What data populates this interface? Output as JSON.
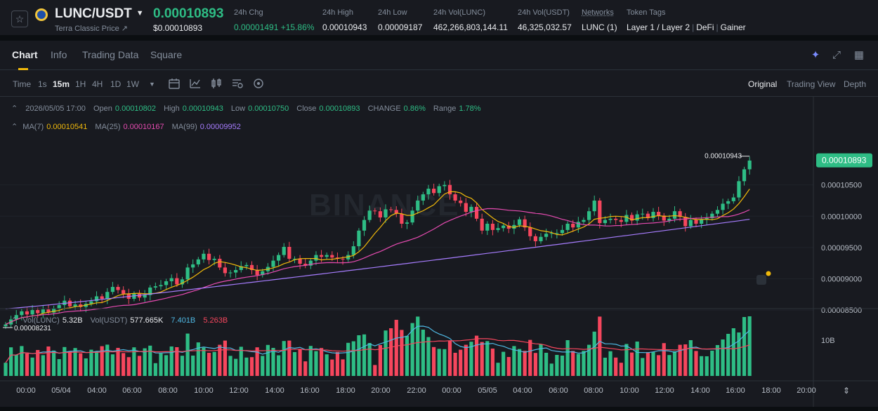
{
  "header": {
    "pair": "LUNC/USDT",
    "subname": "Terra Classic Price ↗",
    "price": "0.00010893",
    "price_usd": "$0.00010893",
    "stats": [
      {
        "label": "24h Chg",
        "value": "0.00001491 +15.86%",
        "green": true
      },
      {
        "label": "24h High",
        "value": "0.00010943"
      },
      {
        "label": "24h Low",
        "value": "0.00009187"
      },
      {
        "label": "24h Vol(LUNC)",
        "value": "462,266,803,144.11"
      },
      {
        "label": "24h Vol(USDT)",
        "value": "46,325,032.57"
      },
      {
        "label": "Networks",
        "value": "LUNC (1)"
      }
    ],
    "token_tags_label": "Token Tags",
    "token_tags": [
      "Layer 1 / Layer 2",
      "DeFi",
      "Gainer"
    ]
  },
  "tabs": [
    "Chart",
    "Info",
    "Trading Data",
    "Square"
  ],
  "timeframes": [
    "Time",
    "1s",
    "15m",
    "1H",
    "4H",
    "1D",
    "1W"
  ],
  "active_timeframe": "15m",
  "views": [
    "Original",
    "Trading View",
    "Depth"
  ],
  "ohlc": {
    "date": "2026/05/05 17:00",
    "open_label": "Open",
    "open": "0.00010802",
    "high_label": "High",
    "high": "0.00010943",
    "low_label": "Low",
    "low": "0.00010750",
    "close_label": "Close",
    "close": "0.00010893",
    "change_label": "CHANGE",
    "change": "0.86%",
    "range_label": "Range",
    "range": "1.78%"
  },
  "ma": [
    {
      "label": "MA(7)",
      "value": "0.00010541",
      "color": "#f0b90b"
    },
    {
      "label": "MA(25)",
      "value": "0.00010167",
      "color": "#e64bb1"
    },
    {
      "label": "MA(99)",
      "value": "0.00009952",
      "color": "#a77dff"
    }
  ],
  "volume": {
    "lunc_label": "Vol(LUNC)",
    "lunc": "5.32B",
    "usdt_label": "Vol(USDT)",
    "usdt": "577.665K",
    "ma1": "7.401B",
    "ma2": "5.263B",
    "ma1_color": "#4fb8e3",
    "ma2_color": "#f6465d",
    "axis_label": "10B"
  },
  "watermark": "BINANCE",
  "price_axis": [
    "0.00010500",
    "0.00010000",
    "0.00009500",
    "0.00009000",
    "0.00008500"
  ],
  "current_price_tag": "0.00010893",
  "high_marker": "0.00010943",
  "low_marker": "0.00008231",
  "time_axis": [
    "00:00",
    "05/04",
    "04:00",
    "06:00",
    "08:00",
    "10:00",
    "12:00",
    "14:00",
    "16:00",
    "18:00",
    "20:00",
    "22:00",
    "00:00",
    "05/05",
    "04:00",
    "06:00",
    "08:00",
    "10:00",
    "12:00",
    "14:00",
    "16:00",
    "18:00",
    "20:00"
  ],
  "colors": {
    "up": "#2ebd85",
    "down": "#f6465d",
    "accent": "#f0b90b"
  },
  "chart_data": {
    "type": "candlestick",
    "close": [
      8.27e-05,
      8.35e-05,
      8.42e-05,
      8.48e-05,
      8.43e-05,
      8.5e-05,
      8.45e-05,
      8.51e-05,
      8.46e-05,
      8.53e-05,
      8.58e-05,
      8.65e-05,
      8.56e-05,
      8.59e-05,
      8.55e-05,
      8.6e-05,
      8.64e-05,
      8.72e-05,
      8.68e-05,
      8.79e-05,
      8.87e-05,
      8.82e-05,
      8.76e-05,
      8.68e-05,
      8.76e-05,
      8.7e-05,
      8.74e-05,
      8.86e-05,
      8.88e-05,
      8.9e-05,
      8.96e-05,
      9.01e-05,
      8.91e-05,
      8.99e-05,
      9.18e-05,
      9.23e-05,
      9.31e-05,
      9.4e-05,
      9.3e-05,
      9.32e-05,
      9.18e-05,
      9.09e-05,
      9.1e-05,
      9.14e-05,
      9.2e-05,
      9.22e-05,
      9.14e-05,
      9.06e-05,
      9.12e-05,
      9.19e-05,
      9.29e-05,
      9.38e-05,
      9.51e-05,
      9.32e-05,
      9.32e-05,
      9.24e-05,
      9.21e-05,
      9.29e-05,
      9.38e-05,
      9.35e-05,
      9.38e-05,
      9.34e-05,
      9.32e-05,
      9.31e-05,
      9.38e-05,
      9.52e-05,
      9.77e-05,
      9.94e-05,
      0.0001009,
      0.0001008,
      9.98e-05,
      0.0001011,
      0.000101,
      0.0001004,
      9.88e-05,
      9.9e-05,
      0.0001009,
      0.0001025,
      0.0001035,
      0.0001044,
      0.0001037,
      0.0001048,
      0.000105,
      0.0001035,
      0.0001025,
      0.0001021,
      0.0001007,
      0.0001015,
      9.96e-05,
      9.77e-05,
      9.88e-05,
      9.78e-05,
      9.81e-05,
      9.85e-05,
      9.8e-05,
      9.86e-05,
      9.95e-05,
      9.82e-05,
      9.68e-05,
      9.6e-05,
      9.67e-05,
      9.72e-05,
      9.73e-05,
      9.73e-05,
      9.78e-05,
      9.88e-05,
      9.82e-05,
      9.91e-05,
      9.94e-05,
      0.0001008,
      0.0001025,
      9.89e-05,
      9.94e-05,
      9.96e-05,
      9.94e-05,
      9.91e-05,
      0.0001002,
      9.93e-05,
      0.0001003,
      0.0001004,
      9.97e-05,
      0.0001007,
      0.0001001,
      9.93e-05,
      9.96e-05,
      0.0001008,
      9.99e-05,
      9.84e-05,
      9.94e-05,
      9.88e-05,
      9.95e-05,
      9.97e-05,
      0.0001004,
      0.000101,
      0.000102,
      0.0001024,
      0.000103,
      0.0001056,
      0.0001075,
      0.0001089
    ]
  }
}
